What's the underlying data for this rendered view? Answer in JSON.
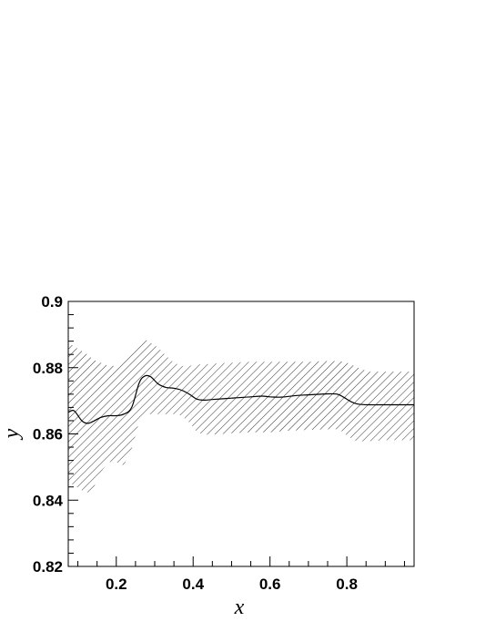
{
  "chart_data": {
    "type": "line",
    "title": "",
    "xlabel": "x",
    "ylabel": "y",
    "xlim": [
      0.075,
      0.975
    ],
    "ylim": [
      0.82,
      0.9
    ],
    "x_ticks": [
      0.2,
      0.4,
      0.6,
      0.8
    ],
    "x_tick_labels": [
      "0.2",
      "0.4",
      "0.6",
      "0.8"
    ],
    "y_ticks": [
      0.82,
      0.84,
      0.86,
      0.88,
      0.9
    ],
    "y_tick_labels": [
      "0.82",
      "0.84",
      "0.86",
      "0.88",
      "0.9"
    ],
    "grid": false,
    "series": [
      {
        "style": "solid-line",
        "x": [
          0.075,
          0.09,
          0.11,
          0.125,
          0.14,
          0.16,
          0.18,
          0.2,
          0.22,
          0.24,
          0.26,
          0.275,
          0.29,
          0.31,
          0.33,
          0.35,
          0.37,
          0.39,
          0.41,
          0.43,
          0.45,
          0.5,
          0.55,
          0.58,
          0.6,
          0.63,
          0.67,
          0.7,
          0.75,
          0.775,
          0.79,
          0.81,
          0.83,
          0.86,
          0.9,
          0.95,
          0.975
        ],
        "y": [
          0.8665,
          0.867,
          0.864,
          0.8632,
          0.8638,
          0.865,
          0.8655,
          0.8655,
          0.866,
          0.868,
          0.8755,
          0.8775,
          0.8772,
          0.875,
          0.874,
          0.8738,
          0.8732,
          0.872,
          0.8705,
          0.8702,
          0.8704,
          0.8708,
          0.8712,
          0.8714,
          0.8712,
          0.8711,
          0.8716,
          0.8718,
          0.8721,
          0.872,
          0.8712,
          0.8698,
          0.869,
          0.8688,
          0.8688,
          0.8688,
          0.8688
        ]
      }
    ],
    "band": {
      "style": "hatched",
      "x": [
        0.075,
        0.09,
        0.11,
        0.125,
        0.14,
        0.16,
        0.18,
        0.2,
        0.22,
        0.24,
        0.25,
        0.26,
        0.275,
        0.29,
        0.31,
        0.33,
        0.35,
        0.37,
        0.39,
        0.41,
        0.43,
        0.45,
        0.5,
        0.55,
        0.6,
        0.65,
        0.7,
        0.75,
        0.78,
        0.8,
        0.82,
        0.84,
        0.86,
        0.9,
        0.95,
        0.975
      ],
      "upper": [
        0.8875,
        0.8865,
        0.885,
        0.884,
        0.8825,
        0.8815,
        0.8805,
        0.8805,
        0.882,
        0.8855,
        0.887,
        0.8875,
        0.8885,
        0.8875,
        0.886,
        0.8835,
        0.8815,
        0.8805,
        0.8805,
        0.881,
        0.881,
        0.8812,
        0.8815,
        0.8818,
        0.8818,
        0.8818,
        0.8818,
        0.882,
        0.882,
        0.8815,
        0.8805,
        0.8795,
        0.8788,
        0.8788,
        0.8788,
        0.8788
      ],
      "lower": [
        0.8455,
        0.8445,
        0.843,
        0.8423,
        0.8435,
        0.8485,
        0.8515,
        0.8515,
        0.8505,
        0.8555,
        0.8595,
        0.864,
        0.866,
        0.866,
        0.866,
        0.866,
        0.866,
        0.8655,
        0.8635,
        0.8605,
        0.8598,
        0.8598,
        0.8602,
        0.8605,
        0.8605,
        0.861,
        0.8612,
        0.8614,
        0.8614,
        0.8595,
        0.858,
        0.8578,
        0.8578,
        0.8581,
        0.8581,
        0.8581
      ]
    }
  }
}
